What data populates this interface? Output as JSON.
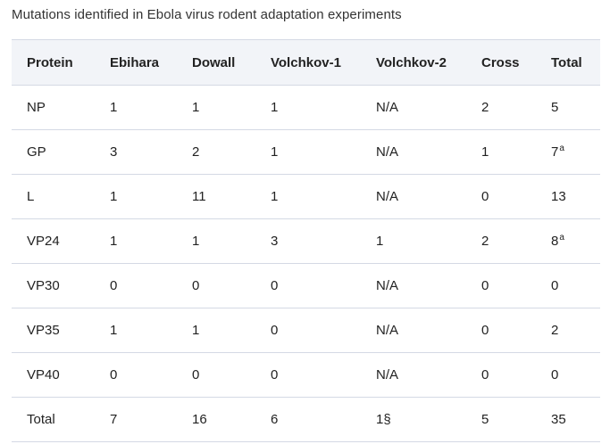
{
  "caption": "Mutations identified in Ebola virus rodent adaptation experiments",
  "table": {
    "headers": [
      "Protein",
      "Ebihara",
      "Dowall",
      "Volchkov-1",
      "Volchkov-2",
      "Cross",
      "Total"
    ],
    "rows": [
      {
        "protein": "NP",
        "ebihara": "1",
        "dowall": "1",
        "volchkov1": "1",
        "volchkov2": "N/A",
        "cross": "2",
        "total": "5",
        "total_note": ""
      },
      {
        "protein": "GP",
        "ebihara": "3",
        "dowall": "2",
        "volchkov1": "1",
        "volchkov2": "N/A",
        "cross": "1",
        "total": "7",
        "total_note": "a"
      },
      {
        "protein": "L",
        "ebihara": "1",
        "dowall": "11",
        "volchkov1": "1",
        "volchkov2": "N/A",
        "cross": "0",
        "total": "13",
        "total_note": ""
      },
      {
        "protein": "VP24",
        "ebihara": "1",
        "dowall": "1",
        "volchkov1": "3",
        "volchkov2": "1",
        "cross": "2",
        "total": "8",
        "total_note": "a"
      },
      {
        "protein": "VP30",
        "ebihara": "0",
        "dowall": "0",
        "volchkov1": "0",
        "volchkov2": "N/A",
        "cross": "0",
        "total": "0",
        "total_note": ""
      },
      {
        "protein": "VP35",
        "ebihara": "1",
        "dowall": "1",
        "volchkov1": "0",
        "volchkov2": "N/A",
        "cross": "0",
        "total": "2",
        "total_note": ""
      },
      {
        "protein": "VP40",
        "ebihara": "0",
        "dowall": "0",
        "volchkov1": "0",
        "volchkov2": "N/A",
        "cross": "0",
        "total": "0",
        "total_note": ""
      },
      {
        "protein": "Total",
        "ebihara": "7",
        "dowall": "16",
        "volchkov1": "6",
        "volchkov2": "1§",
        "cross": "5",
        "total": "35",
        "total_note": ""
      }
    ]
  }
}
